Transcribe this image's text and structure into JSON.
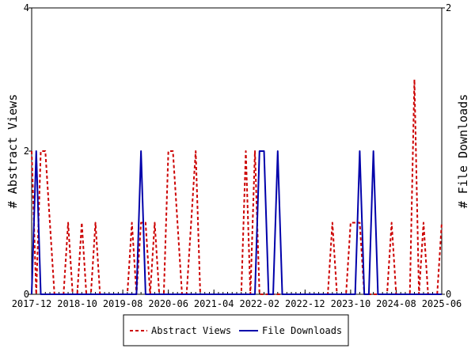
{
  "chart_data": {
    "type": "line",
    "xlabel": "",
    "ylabel": "# Abstract Views",
    "y2label": "# File Downloads",
    "x_tick_labels": [
      "2017-12",
      "2018-10",
      "2019-08",
      "2020-06",
      "2021-04",
      "2022-02",
      "2022-12",
      "2023-10",
      "2024-08",
      "2025-06"
    ],
    "x_range": [
      "2017-12",
      "2025-06"
    ],
    "ylim": [
      0,
      4
    ],
    "y_ticks": [
      0,
      2,
      4
    ],
    "y2lim": [
      0,
      2
    ],
    "y2_ticks": [
      0,
      2
    ],
    "grid": false,
    "legend_position": "bottom-center",
    "series": [
      {
        "name": "Abstract Views",
        "axis": "left",
        "color": "#cc0000",
        "style": "dashed",
        "points": [
          [
            "2017-12",
            2
          ],
          [
            "2018-01",
            0
          ],
          [
            "2018-02",
            2
          ],
          [
            "2018-03",
            2
          ],
          [
            "2018-04",
            1
          ],
          [
            "2018-05",
            0
          ],
          [
            "2018-06",
            0
          ],
          [
            "2018-07",
            0
          ],
          [
            "2018-08",
            1
          ],
          [
            "2018-09",
            0
          ],
          [
            "2018-10",
            0
          ],
          [
            "2018-11",
            1
          ],
          [
            "2018-12",
            0
          ],
          [
            "2019-01",
            0
          ],
          [
            "2019-02",
            1
          ],
          [
            "2019-03",
            0
          ],
          [
            "2019-04",
            0
          ],
          [
            "2019-05",
            0
          ],
          [
            "2019-06",
            0
          ],
          [
            "2019-07",
            0
          ],
          [
            "2019-08",
            0
          ],
          [
            "2019-09",
            0
          ],
          [
            "2019-10",
            1
          ],
          [
            "2019-11",
            0
          ],
          [
            "2019-12",
            1
          ],
          [
            "2020-01",
            1
          ],
          [
            "2020-02",
            0
          ],
          [
            "2020-03",
            1
          ],
          [
            "2020-04",
            0
          ],
          [
            "2020-05",
            0
          ],
          [
            "2020-06",
            2
          ],
          [
            "2020-07",
            2
          ],
          [
            "2020-08",
            1
          ],
          [
            "2020-09",
            0
          ],
          [
            "2020-10",
            0
          ],
          [
            "2020-11",
            1
          ],
          [
            "2020-12",
            2
          ],
          [
            "2021-01",
            0
          ],
          [
            "2021-02",
            0
          ],
          [
            "2021-03",
            0
          ],
          [
            "2021-04",
            0
          ],
          [
            "2021-05",
            0
          ],
          [
            "2021-06",
            0
          ],
          [
            "2021-07",
            0
          ],
          [
            "2021-08",
            0
          ],
          [
            "2021-09",
            0
          ],
          [
            "2021-10",
            0
          ],
          [
            "2021-11",
            2
          ],
          [
            "2021-12",
            0
          ],
          [
            "2022-01",
            2
          ],
          [
            "2022-02",
            0
          ],
          [
            "2022-03",
            0
          ],
          [
            "2022-04",
            0
          ],
          [
            "2022-05",
            0
          ],
          [
            "2022-06",
            0
          ],
          [
            "2022-07",
            0
          ],
          [
            "2022-08",
            0
          ],
          [
            "2022-09",
            0
          ],
          [
            "2022-10",
            0
          ],
          [
            "2022-11",
            0
          ],
          [
            "2022-12",
            0
          ],
          [
            "2023-01",
            0
          ],
          [
            "2023-02",
            0
          ],
          [
            "2023-03",
            0
          ],
          [
            "2023-04",
            0
          ],
          [
            "2023-05",
            0
          ],
          [
            "2023-06",
            1
          ],
          [
            "2023-07",
            0
          ],
          [
            "2023-08",
            0
          ],
          [
            "2023-09",
            0
          ],
          [
            "2023-10",
            1
          ],
          [
            "2023-11",
            1
          ],
          [
            "2023-12",
            1
          ],
          [
            "2024-01",
            0
          ],
          [
            "2024-02",
            0
          ],
          [
            "2024-03",
            0
          ],
          [
            "2024-04",
            0
          ],
          [
            "2024-05",
            0
          ],
          [
            "2024-06",
            0
          ],
          [
            "2024-07",
            1
          ],
          [
            "2024-08",
            0
          ],
          [
            "2024-09",
            0
          ],
          [
            "2024-10",
            0
          ],
          [
            "2024-11",
            0
          ],
          [
            "2024-12",
            3
          ],
          [
            "2025-01",
            0
          ],
          [
            "2025-02",
            1
          ],
          [
            "2025-03",
            0
          ],
          [
            "2025-04",
            0
          ],
          [
            "2025-05",
            0
          ],
          [
            "2025-06",
            1
          ]
        ]
      },
      {
        "name": "File Downloads",
        "axis": "right",
        "color": "#0000aa",
        "style": "solid",
        "points": [
          [
            "2017-12",
            0
          ],
          [
            "2018-01",
            1
          ],
          [
            "2018-02",
            0
          ],
          [
            "2018-03",
            0
          ],
          [
            "2018-04",
            0
          ],
          [
            "2018-05",
            0
          ],
          [
            "2018-06",
            0
          ],
          [
            "2018-07",
            0
          ],
          [
            "2018-08",
            0
          ],
          [
            "2018-09",
            0
          ],
          [
            "2018-10",
            0
          ],
          [
            "2018-11",
            0
          ],
          [
            "2018-12",
            0
          ],
          [
            "2019-01",
            0
          ],
          [
            "2019-02",
            0
          ],
          [
            "2019-03",
            0
          ],
          [
            "2019-04",
            0
          ],
          [
            "2019-05",
            0
          ],
          [
            "2019-06",
            0
          ],
          [
            "2019-07",
            0
          ],
          [
            "2019-08",
            0
          ],
          [
            "2019-09",
            0
          ],
          [
            "2019-10",
            0
          ],
          [
            "2019-11",
            0
          ],
          [
            "2019-12",
            1
          ],
          [
            "2020-01",
            0
          ],
          [
            "2020-02",
            0
          ],
          [
            "2020-03",
            0
          ],
          [
            "2020-04",
            0
          ],
          [
            "2020-05",
            0
          ],
          [
            "2020-06",
            0
          ],
          [
            "2020-07",
            0
          ],
          [
            "2020-08",
            0
          ],
          [
            "2020-09",
            0
          ],
          [
            "2020-10",
            0
          ],
          [
            "2020-11",
            0
          ],
          [
            "2020-12",
            0
          ],
          [
            "2021-01",
            0
          ],
          [
            "2021-02",
            0
          ],
          [
            "2021-03",
            0
          ],
          [
            "2021-04",
            0
          ],
          [
            "2021-05",
            0
          ],
          [
            "2021-06",
            0
          ],
          [
            "2021-07",
            0
          ],
          [
            "2021-08",
            0
          ],
          [
            "2021-09",
            0
          ],
          [
            "2021-10",
            0
          ],
          [
            "2021-11",
            0
          ],
          [
            "2021-12",
            0
          ],
          [
            "2022-01",
            0
          ],
          [
            "2022-02",
            1
          ],
          [
            "2022-03",
            1
          ],
          [
            "2022-04",
            0
          ],
          [
            "2022-05",
            0
          ],
          [
            "2022-06",
            1
          ],
          [
            "2022-07",
            0
          ],
          [
            "2022-08",
            0
          ],
          [
            "2022-09",
            0
          ],
          [
            "2022-10",
            0
          ],
          [
            "2022-11",
            0
          ],
          [
            "2022-12",
            0
          ],
          [
            "2023-01",
            0
          ],
          [
            "2023-02",
            0
          ],
          [
            "2023-03",
            0
          ],
          [
            "2023-04",
            0
          ],
          [
            "2023-05",
            0
          ],
          [
            "2023-06",
            0
          ],
          [
            "2023-07",
            0
          ],
          [
            "2023-08",
            0
          ],
          [
            "2023-09",
            0
          ],
          [
            "2023-10",
            0
          ],
          [
            "2023-11",
            0
          ],
          [
            "2023-12",
            1
          ],
          [
            "2024-01",
            0
          ],
          [
            "2024-02",
            0
          ],
          [
            "2024-03",
            1
          ],
          [
            "2024-04",
            0
          ],
          [
            "2024-05",
            0
          ],
          [
            "2024-06",
            0
          ],
          [
            "2024-07",
            0
          ],
          [
            "2024-08",
            0
          ],
          [
            "2024-09",
            0
          ],
          [
            "2024-10",
            0
          ],
          [
            "2024-11",
            0
          ],
          [
            "2024-12",
            0
          ],
          [
            "2025-01",
            0
          ],
          [
            "2025-02",
            0
          ],
          [
            "2025-03",
            0
          ],
          [
            "2025-04",
            0
          ],
          [
            "2025-05",
            0
          ],
          [
            "2025-06",
            0
          ]
        ]
      }
    ]
  }
}
